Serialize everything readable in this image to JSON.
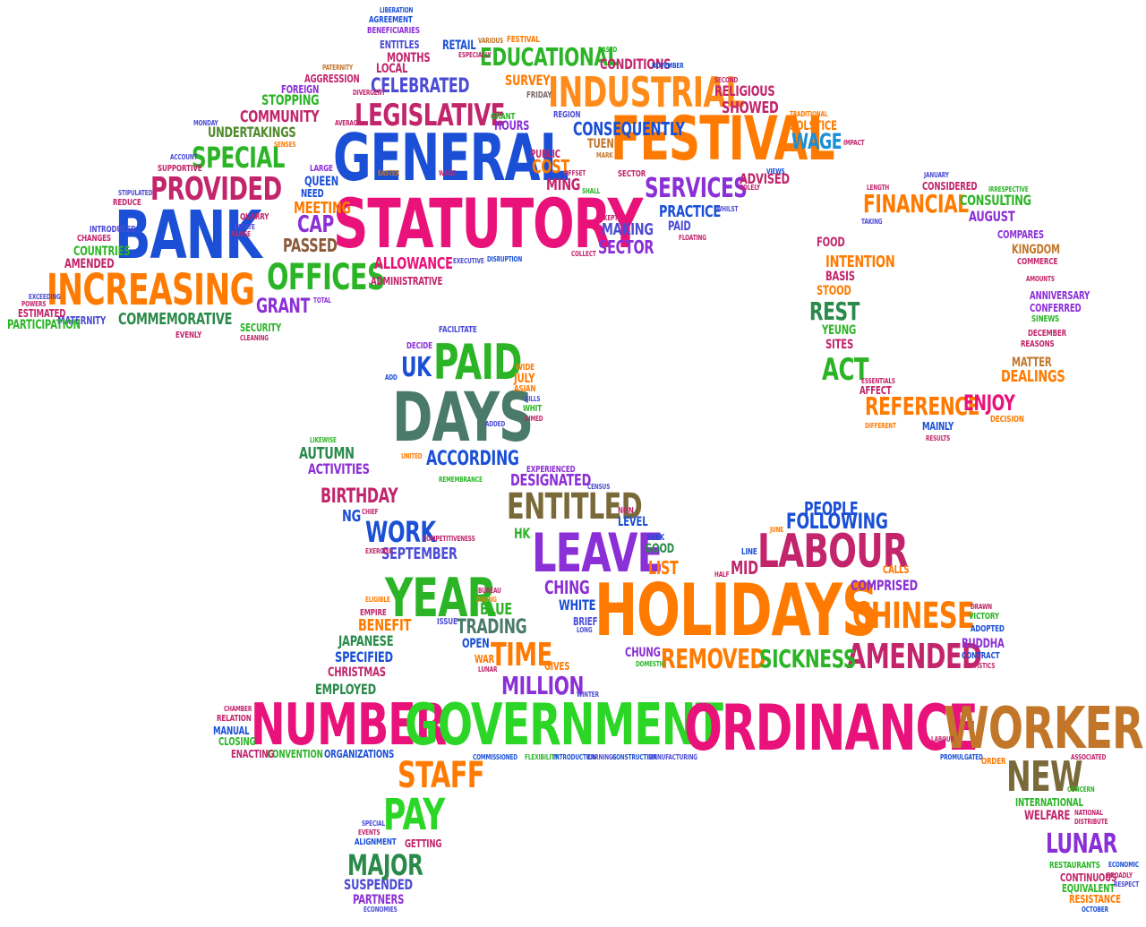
{
  "palette": [
    "#1a4fd6",
    "#e8127a",
    "#ff7a00",
    "#2bb526",
    "#8b2fd6",
    "#c8892a",
    "#4f8a2a",
    "#7a6a3a"
  ],
  "words": [
    {
      "text": "GENERAL",
      "color": "#1a4fd6"
    },
    {
      "text": "STATUTORY",
      "color": "#e8127a"
    },
    {
      "text": "FESTIVAL",
      "color": "#ff7a00"
    },
    {
      "text": "INDUSTRIAL",
      "color": "#ff8c1a"
    },
    {
      "text": "BANK",
      "color": "#1a4fd6"
    },
    {
      "text": "INCREASING",
      "color": "#ff7a00"
    },
    {
      "text": "PROVIDED",
      "color": "#c2256b"
    },
    {
      "text": "SPECIAL",
      "color": "#2bb526"
    },
    {
      "text": "LEGISLATIVE",
      "color": "#c2256b"
    },
    {
      "text": "OFFICES",
      "color": "#2bb526"
    },
    {
      "text": "SERVICES",
      "color": "#8b2fd6"
    },
    {
      "text": "EDUCATIONAL",
      "color": "#2bb526"
    },
    {
      "text": "CELEBRATED",
      "color": "#4b4bd6"
    },
    {
      "text": "WAGE",
      "color": "#1a8fd6"
    },
    {
      "text": "PRACTICE",
      "color": "#1a4fd6"
    },
    {
      "text": "SECTOR",
      "color": "#8b2fd6"
    },
    {
      "text": "COST",
      "color": "#ff7a00"
    },
    {
      "text": "MING",
      "color": "#c2256b"
    },
    {
      "text": "CAP",
      "color": "#8b2fd6"
    },
    {
      "text": "PASSED",
      "color": "#8a5a3a"
    },
    {
      "text": "GRANT",
      "color": "#8b2fd6"
    },
    {
      "text": "ALLOWANCE",
      "color": "#e8127a"
    },
    {
      "text": "COMMEMORATIVE",
      "color": "#2a8a4a"
    },
    {
      "text": "COMMUNITY",
      "color": "#c2256b"
    },
    {
      "text": "UNDERTAKINGS",
      "color": "#4f8a2a"
    },
    {
      "text": "STOPPING",
      "color": "#2bb526"
    },
    {
      "text": "FINANCIAL",
      "color": "#ff7a00"
    },
    {
      "text": "CONSULTING",
      "color": "#2bb526"
    },
    {
      "text": "AUGUST",
      "color": "#8b2fd6"
    },
    {
      "text": "REST",
      "color": "#2a8a4a"
    },
    {
      "text": "ACT",
      "color": "#2bb526"
    },
    {
      "text": "REFERENCE",
      "color": "#ff7a00"
    },
    {
      "text": "ENJOY",
      "color": "#e8127a"
    },
    {
      "text": "DEALINGS",
      "color": "#ff7a00"
    },
    {
      "text": "DAYS",
      "color": "#4a7a6a"
    },
    {
      "text": "PAID",
      "color": "#2bb526"
    },
    {
      "text": "UK",
      "color": "#1a4fd6"
    },
    {
      "text": "ACCORDING",
      "color": "#1a4fd6"
    },
    {
      "text": "HOLIDAYS",
      "color": "#ff7a00"
    },
    {
      "text": "LEAVE",
      "color": "#8b2fd6"
    },
    {
      "text": "ENTITLED",
      "color": "#7a6a3a"
    },
    {
      "text": "LABOUR",
      "color": "#c2256b"
    },
    {
      "text": "FOLLOWING",
      "color": "#1a4fd6"
    },
    {
      "text": "CHINESE",
      "color": "#ff7a00"
    },
    {
      "text": "AMENDED",
      "color": "#c2256b"
    },
    {
      "text": "REMOVED",
      "color": "#ff7a00"
    },
    {
      "text": "SICKNESS",
      "color": "#2bb526"
    },
    {
      "text": "YEAR",
      "color": "#2bb526"
    },
    {
      "text": "WORK",
      "color": "#1a4fd6"
    },
    {
      "text": "TIME",
      "color": "#ff7a00"
    },
    {
      "text": "MILLION",
      "color": "#8b2fd6"
    },
    {
      "text": "NUMBER",
      "color": "#e8127a"
    },
    {
      "text": "GOVERNMENT",
      "color": "#2bd626"
    },
    {
      "text": "ORDINANCE",
      "color": "#e8127a"
    },
    {
      "text": "WORKERS",
      "color": "#c2762a"
    },
    {
      "text": "NEW",
      "color": "#7a6a3a"
    },
    {
      "text": "STAFF",
      "color": "#ff7a00"
    },
    {
      "text": "PAY",
      "color": "#2bd626"
    },
    {
      "text": "MAJOR",
      "color": "#2a8a4a"
    },
    {
      "text": "LUNAR",
      "color": "#8b2fd6"
    },
    {
      "text": "BIRTHDAY",
      "color": "#c2256b"
    },
    {
      "text": "AUTUMN",
      "color": "#2a8a4a"
    },
    {
      "text": "ACTIVITIES",
      "color": "#8b2fd6"
    },
    {
      "text": "BENEFIT",
      "color": "#ff7a00"
    },
    {
      "text": "SPECIFIED",
      "color": "#1a4fd6"
    },
    {
      "text": "JAPANESE",
      "color": "#2a8a4a"
    },
    {
      "text": "EMPLOYED",
      "color": "#2a8a4a"
    },
    {
      "text": "CHRISTMAS",
      "color": "#c2256b"
    },
    {
      "text": "TRADING",
      "color": "#4a7a6a"
    },
    {
      "text": "SEPTEMBER",
      "color": "#4b4bd6"
    },
    {
      "text": "DESIGNATED",
      "color": "#8b2fd6"
    },
    {
      "text": "COMPRISED",
      "color": "#8b2fd6"
    },
    {
      "text": "SUSPENDED",
      "color": "#4b4bd6"
    },
    {
      "text": "INTERNATIONAL",
      "color": "#2bb526"
    },
    {
      "text": "WELFARE",
      "color": "#c2256b"
    },
    {
      "text": "RESTAURANTS",
      "color": "#2bb526"
    },
    {
      "text": "CONTINUOUS",
      "color": "#c2256b"
    },
    {
      "text": "EQUIVALENT",
      "color": "#2bb526"
    },
    {
      "text": "RESISTANCE",
      "color": "#ff7a00"
    },
    {
      "text": "ORGANIZATIONS",
      "color": "#1a4fd6"
    },
    {
      "text": "CONVENTION",
      "color": "#2bb526"
    },
    {
      "text": "MANUAL",
      "color": "#1a4fd6"
    },
    {
      "text": "CLOSING",
      "color": "#2bb526"
    },
    {
      "text": "ENACTING",
      "color": "#c2256b"
    },
    {
      "text": "RELATION",
      "color": "#c2256b"
    },
    {
      "text": "CHAMBER",
      "color": "#c2256b"
    },
    {
      "text": "GETTING",
      "color": "#c2256b"
    },
    {
      "text": "ALIGNMENT",
      "color": "#1a4fd6"
    },
    {
      "text": "PARTNERS",
      "color": "#8b2fd6"
    },
    {
      "text": "ECONOMIES",
      "color": "#4b4bd6"
    },
    {
      "text": "EVENTS",
      "color": "#c2256b"
    },
    {
      "text": "SPECIAL",
      "color": "#4b4bd6"
    },
    {
      "text": "COMMISSIONED",
      "color": "#1a4fd6"
    },
    {
      "text": "FLEXIBILITY",
      "color": "#2bb526"
    },
    {
      "text": "INTRODUCTION",
      "color": "#1a4fd6"
    },
    {
      "text": "EARNINGS",
      "color": "#4b4bd6"
    },
    {
      "text": "CONSTRUCTION",
      "color": "#1a4fd6"
    },
    {
      "text": "MANUFACTURING",
      "color": "#4b4bd6"
    },
    {
      "text": "PROMULGATED",
      "color": "#1a4fd6"
    },
    {
      "text": "ORDER",
      "color": "#ff7a00"
    },
    {
      "text": "ASSOCIATED",
      "color": "#c2256b"
    },
    {
      "text": "CONCERN",
      "color": "#2bb526"
    },
    {
      "text": "NATIONAL",
      "color": "#c2256b"
    },
    {
      "text": "DISTRIBUTE",
      "color": "#c2256b"
    },
    {
      "text": "ECONOMIC",
      "color": "#1a4fd6"
    },
    {
      "text": "BROADLY",
      "color": "#c2256b"
    },
    {
      "text": "RESPECT",
      "color": "#4b4bd6"
    },
    {
      "text": "OCTOBER",
      "color": "#1a4fd6"
    },
    {
      "text": "LABOUR",
      "color": "#c2256b"
    },
    {
      "text": "SEEK",
      "color": "#1a4fd6"
    },
    {
      "text": "GOOD",
      "color": "#2a8a4a"
    },
    {
      "text": "LIST",
      "color": "#ff7a00"
    },
    {
      "text": "HK",
      "color": "#2bb526"
    },
    {
      "text": "CHING",
      "color": "#8b2fd6"
    },
    {
      "text": "WHITE",
      "color": "#1a4fd6"
    },
    {
      "text": "BRIEF",
      "color": "#4b4bd6"
    },
    {
      "text": "LONG",
      "color": "#4b4bd6"
    },
    {
      "text": "CHUNG",
      "color": "#8b2fd6"
    },
    {
      "text": "DOMESTIC",
      "color": "#2bb526"
    },
    {
      "text": "BLUE",
      "color": "#2bb526"
    },
    {
      "text": "OPEN",
      "color": "#1a4fd6"
    },
    {
      "text": "WAR",
      "color": "#ff7a00"
    },
    {
      "text": "GIVES",
      "color": "#ff7a00"
    },
    {
      "text": "LUNAR",
      "color": "#c2256b"
    },
    {
      "text": "ISSUE",
      "color": "#4b4bd6"
    },
    {
      "text": "WINTER",
      "color": "#4b4bd6"
    },
    {
      "text": "NON",
      "color": "#c2256b"
    },
    {
      "text": "LEVEL",
      "color": "#1a4fd6"
    },
    {
      "text": "CENSUS",
      "color": "#4b4bd6"
    },
    {
      "text": "EXPERIENCED",
      "color": "#8b2fd6"
    },
    {
      "text": "MID",
      "color": "#c2256b"
    },
    {
      "text": "LINE",
      "color": "#1a4fd6"
    },
    {
      "text": "HALF",
      "color": "#c2256b"
    },
    {
      "text": "PEOPLE",
      "color": "#1a4fd6"
    },
    {
      "text": "JUNE",
      "color": "#ff7a00"
    },
    {
      "text": "CALLS",
      "color": "#ff7a00"
    },
    {
      "text": "VICTORY",
      "color": "#2bb526"
    },
    {
      "text": "ADOPTED",
      "color": "#1a4fd6"
    },
    {
      "text": "BUDDHA",
      "color": "#8b2fd6"
    },
    {
      "text": "CONTRACT",
      "color": "#1a4fd6"
    },
    {
      "text": "STATISTICS",
      "color": "#c2256b"
    },
    {
      "text": "DRAWN",
      "color": "#c2256b"
    },
    {
      "text": "REMEMBRANCE",
      "color": "#2bb526"
    },
    {
      "text": "UNITED",
      "color": "#ff7a00"
    },
    {
      "text": "FACILITATE",
      "color": "#4b4bd6"
    },
    {
      "text": "DECIDE",
      "color": "#8b2fd6"
    },
    {
      "text": "ADD",
      "color": "#1a4fd6"
    },
    {
      "text": "WIDE",
      "color": "#ff7a00"
    },
    {
      "text": "JULY",
      "color": "#ff7a00"
    },
    {
      "text": "ASIAN",
      "color": "#ff7a00"
    },
    {
      "text": "BILLS",
      "color": "#4b4bd6"
    },
    {
      "text": "WHIT",
      "color": "#2bb526"
    },
    {
      "text": "AIMED",
      "color": "#c2256b"
    },
    {
      "text": "ADDED",
      "color": "#4b4bd6"
    },
    {
      "text": "NG",
      "color": "#1a4fd6"
    },
    {
      "text": "LIKEWISE",
      "color": "#2bb526"
    },
    {
      "text": "CHIEF",
      "color": "#c2256b"
    },
    {
      "text": "COMPETITIVENESS",
      "color": "#c2256b"
    },
    {
      "text": "ELIGIBLE",
      "color": "#ff7a00"
    },
    {
      "text": "EMPIRE",
      "color": "#c2256b"
    },
    {
      "text": "BUREAU",
      "color": "#c2256b"
    },
    {
      "text": "DINING",
      "color": "#ff7a00"
    },
    {
      "text": "EXERCISE",
      "color": "#c2256b"
    },
    {
      "text": "FOOD",
      "color": "#c2256b"
    },
    {
      "text": "INTENTION",
      "color": "#ff7a00"
    },
    {
      "text": "BASIS",
      "color": "#c2256b"
    },
    {
      "text": "STOOD",
      "color": "#ff7a00"
    },
    {
      "text": "YEUNG",
      "color": "#2bb526"
    },
    {
      "text": "SITES",
      "color": "#c2256b"
    },
    {
      "text": "AFFECT",
      "color": "#c2256b"
    },
    {
      "text": "ESSENTIALS",
      "color": "#c2256b"
    },
    {
      "text": "DIFFERENT",
      "color": "#ff7a00"
    },
    {
      "text": "MAINLY",
      "color": "#1a4fd6"
    },
    {
      "text": "RESULTS",
      "color": "#c2256b"
    },
    {
      "text": "DECISION",
      "color": "#ff7a00"
    },
    {
      "text": "MATTER",
      "color": "#c2762a"
    },
    {
      "text": "REASONS",
      "color": "#c2256b"
    },
    {
      "text": "DECEMBER",
      "color": "#c2256b"
    },
    {
      "text": "SINEWS",
      "color": "#2bb526"
    },
    {
      "text": "CONFERRED",
      "color": "#8b2fd6"
    },
    {
      "text": "ANNIVERSARY",
      "color": "#8b2fd6"
    },
    {
      "text": "AMOUNTS",
      "color": "#c2256b"
    },
    {
      "text": "COMMERCE",
      "color": "#c2256b"
    },
    {
      "text": "KINGDOM",
      "color": "#c2762a"
    },
    {
      "text": "COMPARES",
      "color": "#8b2fd6"
    },
    {
      "text": "IRRESPECTIVE",
      "color": "#2bb526"
    },
    {
      "text": "JANUARY",
      "color": "#4b4bd6"
    },
    {
      "text": "CONSIDERED",
      "color": "#c2256b"
    },
    {
      "text": "LENGTH",
      "color": "#c2256b"
    },
    {
      "text": "TAKING",
      "color": "#4b4bd6"
    },
    {
      "text": "ADMINISTRATIVE",
      "color": "#c2256b"
    },
    {
      "text": "TOTAL",
      "color": "#8b2fd6"
    },
    {
      "text": "EXECUTIVE",
      "color": "#4b4bd6"
    },
    {
      "text": "DISRUPTION",
      "color": "#1a4fd6"
    },
    {
      "text": "SECURITY",
      "color": "#2bb526"
    },
    {
      "text": "CLEANING",
      "color": "#c2256b"
    },
    {
      "text": "EVENLY",
      "color": "#c2256b"
    },
    {
      "text": "MATERNITY",
      "color": "#4b4bd6"
    },
    {
      "text": "PARTICIPATION",
      "color": "#2bb526"
    },
    {
      "text": "ESTIMATED",
      "color": "#c2256b"
    },
    {
      "text": "POWERS",
      "color": "#c2256b"
    },
    {
      "text": "EXCEEDING",
      "color": "#4b4bd6"
    },
    {
      "text": "AMENDED",
      "color": "#c2256b"
    },
    {
      "text": "COUNTRIES",
      "color": "#2bb526"
    },
    {
      "text": "CHANGES",
      "color": "#c2256b"
    },
    {
      "text": "INTRODUCED",
      "color": "#4b4bd6"
    },
    {
      "text": "REDUCE",
      "color": "#c2256b"
    },
    {
      "text": "STIPULATED",
      "color": "#4b4bd6"
    },
    {
      "text": "SUPPORTIVE",
      "color": "#c2256b"
    },
    {
      "text": "ACCOUNT",
      "color": "#4b4bd6"
    },
    {
      "text": "QUARRY",
      "color": "#c2256b"
    },
    {
      "text": "RANGE",
      "color": "#c2256b"
    },
    {
      "text": "ESTATE",
      "color": "#4b4bd6"
    },
    {
      "text": "MONDAY",
      "color": "#4b4bd6"
    },
    {
      "text": "SENSES",
      "color": "#ff7a00"
    },
    {
      "text": "FOREIGN",
      "color": "#8b2fd6"
    },
    {
      "text": "AGGRESSION",
      "color": "#c2256b"
    },
    {
      "text": "PATERNITY",
      "color": "#c2762a"
    },
    {
      "text": "DIVERGENT",
      "color": "#c2256b"
    },
    {
      "text": "ENTITLES",
      "color": "#4b4bd6"
    },
    {
      "text": "MONTHS",
      "color": "#c2256b"
    },
    {
      "text": "LOCAL",
      "color": "#c2256b"
    },
    {
      "text": "BENEFICIARIES",
      "color": "#8b2fd6"
    },
    {
      "text": "AGREEMENT",
      "color": "#1a4fd6"
    },
    {
      "text": "LIBERATION",
      "color": "#1a4fd6"
    },
    {
      "text": "AVERAGE",
      "color": "#c2256b"
    },
    {
      "text": "LARGE",
      "color": "#8b2fd6"
    },
    {
      "text": "QUEEN",
      "color": "#1a4fd6"
    },
    {
      "text": "NEED",
      "color": "#1a4fd6"
    },
    {
      "text": "MEETING",
      "color": "#ff7a00"
    },
    {
      "text": "EASTER",
      "color": "#c2762a"
    },
    {
      "text": "WAGE",
      "color": "#c2256b"
    },
    {
      "text": "GRANT",
      "color": "#2bb526"
    },
    {
      "text": "HOURS",
      "color": "#8b2fd6"
    },
    {
      "text": "RETAIL",
      "color": "#1a4fd6"
    },
    {
      "text": "VARIOUS",
      "color": "#c2762a"
    },
    {
      "text": "FESTIVAL",
      "color": "#ff7a00"
    },
    {
      "text": "ESPECIALLY",
      "color": "#c2256b"
    },
    {
      "text": "SURVEY",
      "color": "#ff7a00"
    },
    {
      "text": "FRIDAY",
      "color": "#7a6a6a"
    },
    {
      "text": "REGION",
      "color": "#4b4bd6"
    },
    {
      "text": "CONSEQUENTLY",
      "color": "#1a4fd6"
    },
    {
      "text": "TUEN",
      "color": "#c2762a"
    },
    {
      "text": "MARK",
      "color": "#c2762a"
    },
    {
      "text": "PUBLIC",
      "color": "#c2256b"
    },
    {
      "text": "SHALL",
      "color": "#2bb526"
    },
    {
      "text": "OFFSET",
      "color": "#c2256b"
    },
    {
      "text": "BASED",
      "color": "#2bb526"
    },
    {
      "text": "CONDITIONS",
      "color": "#c2256b"
    },
    {
      "text": "NOVEMBER",
      "color": "#1a4fd6"
    },
    {
      "text": "RELIGIOUS",
      "color": "#c2256b"
    },
    {
      "text": "SECOND",
      "color": "#c2256b"
    },
    {
      "text": "SHOWED",
      "color": "#c2256b"
    },
    {
      "text": "TRADITIONAL",
      "color": "#ff7a00"
    },
    {
      "text": "SOLSTICE",
      "color": "#ff7a00"
    },
    {
      "text": "IMPACT",
      "color": "#c2256b"
    },
    {
      "text": "SECTOR",
      "color": "#c2256b"
    },
    {
      "text": "ADVISED",
      "color": "#c2256b"
    },
    {
      "text": "VIEWS",
      "color": "#1a4fd6"
    },
    {
      "text": "SOLELY",
      "color": "#c2256b"
    },
    {
      "text": "WHILST",
      "color": "#4b4bd6"
    },
    {
      "text": "PAID",
      "color": "#4b4bd6"
    },
    {
      "text": "FLOATING",
      "color": "#c2256b"
    },
    {
      "text": "MAKING",
      "color": "#4b4bd6"
    },
    {
      "text": "KEPT",
      "color": "#c2256b"
    },
    {
      "text": "COLLECT",
      "color": "#c2256b"
    },
    {
      "text": "NG",
      "color": "#c2256b"
    }
  ]
}
